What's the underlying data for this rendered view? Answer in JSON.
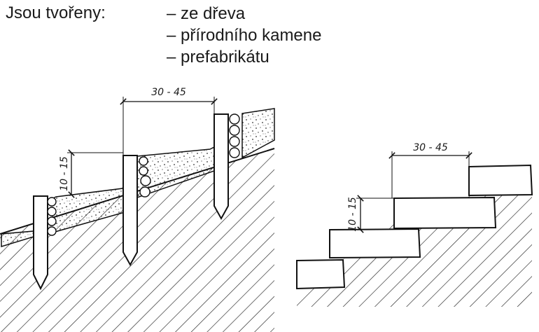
{
  "header": {
    "lead": "Jsou tvořeny:",
    "items": [
      {
        "label": "– ze dřeva"
      },
      {
        "label": "– přírodního kamene"
      },
      {
        "label": "– prefabrikátu"
      }
    ]
  },
  "left_figure": {
    "tread_width": "30 - 45",
    "riser_height": "10 - 15"
  },
  "right_figure": {
    "tread_width": "30 - 45",
    "riser_height": "10 - 15"
  }
}
